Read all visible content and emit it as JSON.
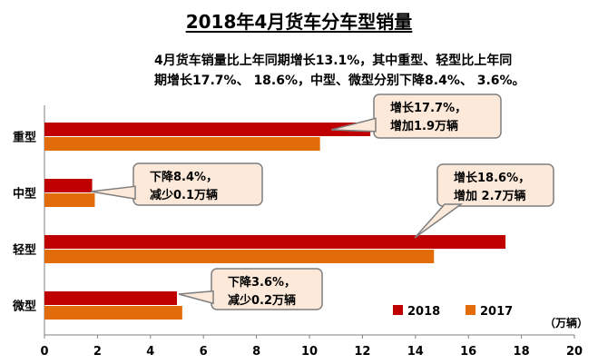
{
  "chart_data": {
    "type": "bar",
    "orientation": "horizontal",
    "title": "2018年4月货车分车型销量",
    "subtitle_lines": [
      "4月货车销量比上年同期增长13.1%，其中重型、轻型比上年同",
      "期增长17.7%、 18.6%，中型、微型分别下降8.4%、 3.6%。"
    ],
    "categories": [
      "重型",
      "中型",
      "轻型",
      "微型"
    ],
    "series": [
      {
        "name": "2018",
        "color": "#c00000",
        "values": [
          12.3,
          1.8,
          17.4,
          5.0
        ]
      },
      {
        "name": "2017",
        "color": "#e36c0a",
        "values": [
          10.4,
          1.9,
          14.7,
          5.2
        ]
      }
    ],
    "xlim": [
      0,
      20
    ],
    "xticks": [
      "0",
      "2",
      "4",
      "6",
      "8",
      "10",
      "12",
      "14",
      "16",
      "18",
      "20"
    ],
    "unit": "（万辆）",
    "legend_position": "bottom-right",
    "grid": false,
    "annotations": [
      {
        "category": "重型",
        "lines": [
          "增长17.7%，",
          "增加1.9万辆"
        ]
      },
      {
        "category": "中型",
        "lines": [
          "下降8.4%，",
          "减少0.1万辆"
        ]
      },
      {
        "category": "轻型",
        "lines": [
          "增长18.6%，",
          "增加 2.7万辆"
        ]
      },
      {
        "category": "微型",
        "lines": [
          "下降3.6%，",
          "减少0.2万辆"
        ]
      }
    ]
  }
}
